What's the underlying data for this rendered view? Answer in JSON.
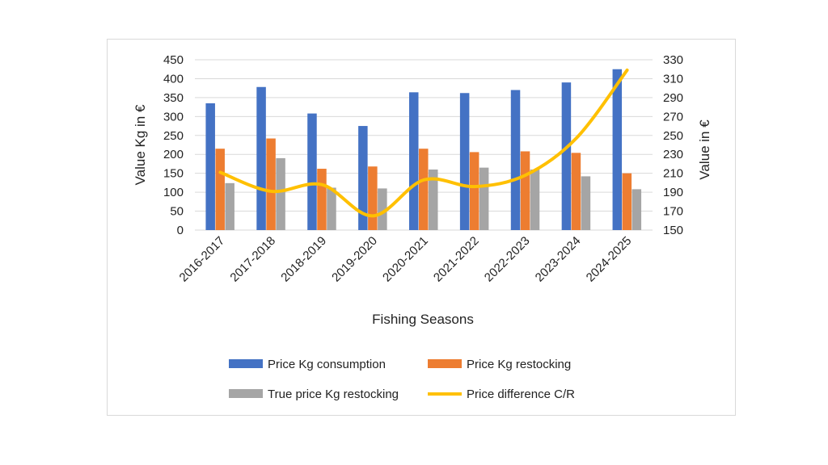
{
  "chart_data": {
    "type": "bar",
    "categories": [
      "2016-2017",
      "2017-2018",
      "2018-2019",
      "2019-2020",
      "2020-2021",
      "2021-2022",
      "2022-2023",
      "2023-2024",
      "2024-2025"
    ],
    "series": [
      {
        "name": "Price Kg consumption",
        "kind": "bar",
        "axis": "left",
        "color": "#4472c4",
        "values": [
          335,
          378,
          308,
          275,
          364,
          362,
          370,
          390,
          425
        ]
      },
      {
        "name": "Price Kg restocking",
        "kind": "bar",
        "axis": "left",
        "color": "#ed7d31",
        "values": [
          215,
          242,
          162,
          168,
          215,
          206,
          208,
          204,
          150
        ]
      },
      {
        "name": "True price Kg restocking",
        "kind": "bar",
        "axis": "left",
        "color": "#a5a5a5",
        "values": [
          124,
          190,
          112,
          110,
          160,
          165,
          160,
          142,
          108
        ]
      },
      {
        "name": "Price difference C/R",
        "kind": "line",
        "axis": "right",
        "color": "#ffc000",
        "values": [
          211,
          191,
          198,
          165,
          203,
          196,
          208,
          247,
          319
        ]
      }
    ],
    "xlabel": "Fishing Seasons",
    "ylabel": "Value Kg in €",
    "y2label": "Value in €",
    "ylim": [
      0,
      450
    ],
    "yticks": [
      "0",
      "50",
      "100",
      "150",
      "200",
      "250",
      "300",
      "350",
      "400",
      "450"
    ],
    "y2lim": [
      150,
      330
    ],
    "y2ticks": [
      "150",
      "170",
      "190",
      "210",
      "230",
      "250",
      "270",
      "290",
      "310",
      "330"
    ],
    "grid": true,
    "legend_position": "bottom"
  }
}
